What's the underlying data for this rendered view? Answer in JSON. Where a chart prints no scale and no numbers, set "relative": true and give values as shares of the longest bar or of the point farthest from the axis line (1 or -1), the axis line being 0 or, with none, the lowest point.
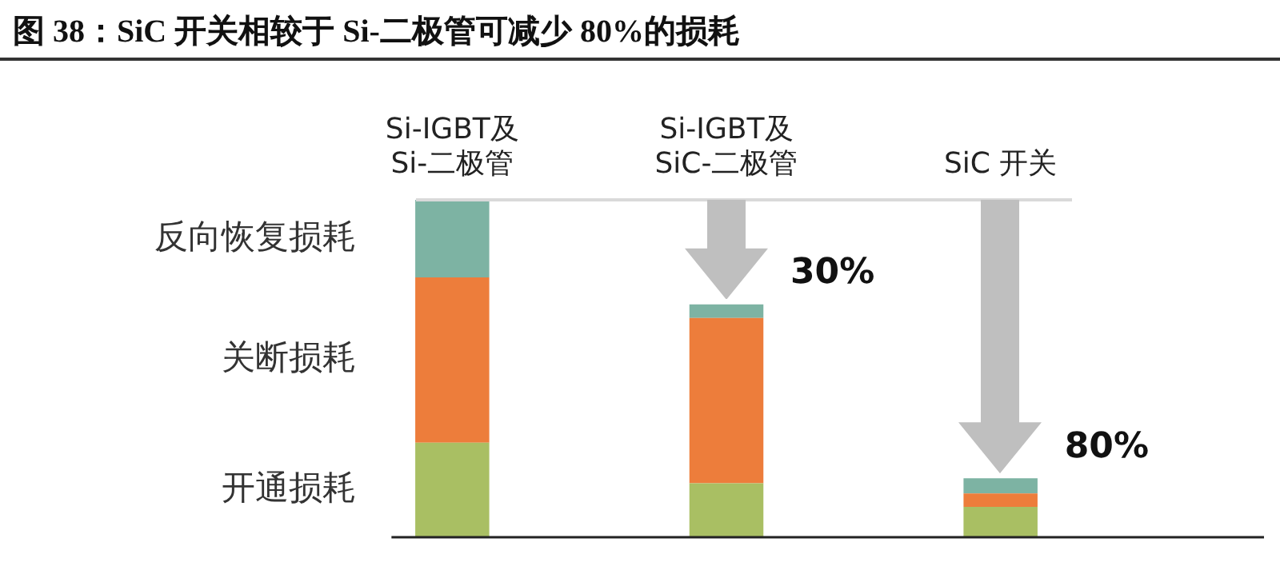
{
  "chart_data": {
    "type": "bar",
    "title": "图 38：SiC 开关相较于 Si-二极管可减少 80%的损耗",
    "categories": [
      "Si-IGBT及\nSi-二极管",
      "Si-IGBT及\nSiC-二极管",
      "SiC 开关"
    ],
    "stacked": true,
    "relative": true,
    "legend": false,
    "series": [
      {
        "name": "开通损耗",
        "color": "#a9bf63",
        "values": [
          0.28,
          0.16,
          0.09
        ]
      },
      {
        "name": "关断损耗",
        "color": "#ed7d3b",
        "values": [
          0.49,
          0.49,
          0.04
        ]
      },
      {
        "name": "反向恢复损耗",
        "color": "#7db3a3",
        "values": [
          0.23,
          0.04,
          0.045
        ]
      }
    ],
    "annotations": [
      {
        "text": "30%",
        "x": "Si-IGBT及\nSiC-二极管",
        "y": 0.69
      },
      {
        "text": "80%",
        "x": "SiC 开关",
        "y": 0.175
      }
    ]
  }
}
